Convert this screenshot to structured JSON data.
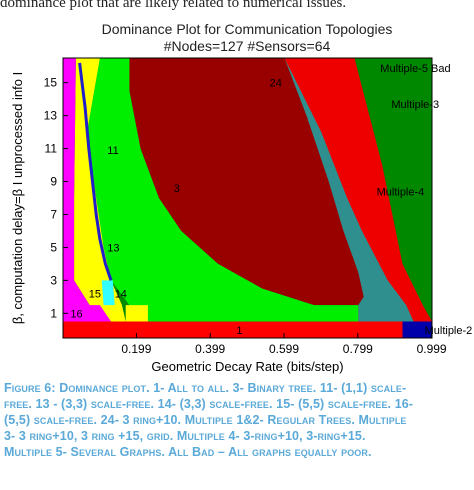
{
  "top_text": "dominance plot that are likely related to numerical issues.",
  "chart_data": {
    "type": "heatmap",
    "title": "Dominance Plot for Communication Topologies",
    "subtitle": "#Nodes=127 #Sensors=64",
    "xlabel": "Geometric Decay Rate (bits/step)",
    "ylabel": "β, computation delay=β I unprocessed info I",
    "xticks": [
      "0.199",
      "0.399",
      "0.599",
      "0.799",
      "0.999"
    ],
    "yticks": [
      "1",
      "3",
      "5",
      "7",
      "9",
      "11",
      "13",
      "15"
    ],
    "xlim": [
      0.0,
      1.0
    ],
    "ylim": [
      0,
      16
    ],
    "region_labels": [
      {
        "text": "1",
        "x": 0.47,
        "y": 0.0
      },
      {
        "text": "16",
        "x": 0.02,
        "y": 1.0
      },
      {
        "text": "15",
        "x": 0.07,
        "y": 2.2
      },
      {
        "text": "14",
        "x": 0.14,
        "y": 2.2
      },
      {
        "text": "13",
        "x": 0.12,
        "y": 5.0
      },
      {
        "text": "3",
        "x": 0.3,
        "y": 8.6
      },
      {
        "text": "11",
        "x": 0.12,
        "y": 10.9
      },
      {
        "text": "24",
        "x": 0.56,
        "y": 15.0
      },
      {
        "text": "Multiple-4",
        "x": 0.85,
        "y": 8.4
      },
      {
        "text": "Multiple-3",
        "x": 0.89,
        "y": 13.7
      },
      {
        "text": "Multiple-5 Bad",
        "x": 0.86,
        "y": 15.9
      },
      {
        "text": "Multiple-2",
        "x": 0.98,
        "y": 0.0
      }
    ],
    "regions": [
      {
        "name": "Multiple 1&2",
        "color": "#ff0000"
      },
      {
        "name": "3",
        "color": "#00ee00"
      },
      {
        "name": "11",
        "color": "#1f1fcc"
      },
      {
        "name": "13",
        "color": "#ffff00"
      },
      {
        "name": "14",
        "color": "#33ffff"
      },
      {
        "name": "15",
        "color": "#ff00ff"
      },
      {
        "name": "16",
        "color": "#ff00ff"
      },
      {
        "name": "24",
        "color": "#990000"
      },
      {
        "name": "Multiple 3",
        "color": "#ee0000"
      },
      {
        "name": "Multiple 4",
        "color": "#2f8f8f"
      },
      {
        "name": "Multiple 5",
        "color": "#008800"
      },
      {
        "name": "All Bad",
        "color": "#0000aa"
      }
    ]
  },
  "caption_lines": [
    "Figure 6: Dominance plot. 1- All to all. 3- Binary tree. 11- (1,1) scale-",
    "free. 13 - (3,3) scale-free. 14- (3,3) scale-free. 15- (5,5) scale-free. 16-",
    "(5,5) scale-free. 24- 3 ring+10. Multiple 1&2- Regular Trees. Multiple",
    "3- 3 ring+10, 3 ring +15, grid. Multiple 4- 3-ring+10, 3-ring+15.",
    "Multiple 5- Several Graphs. All Bad – All graphs equally poor."
  ]
}
